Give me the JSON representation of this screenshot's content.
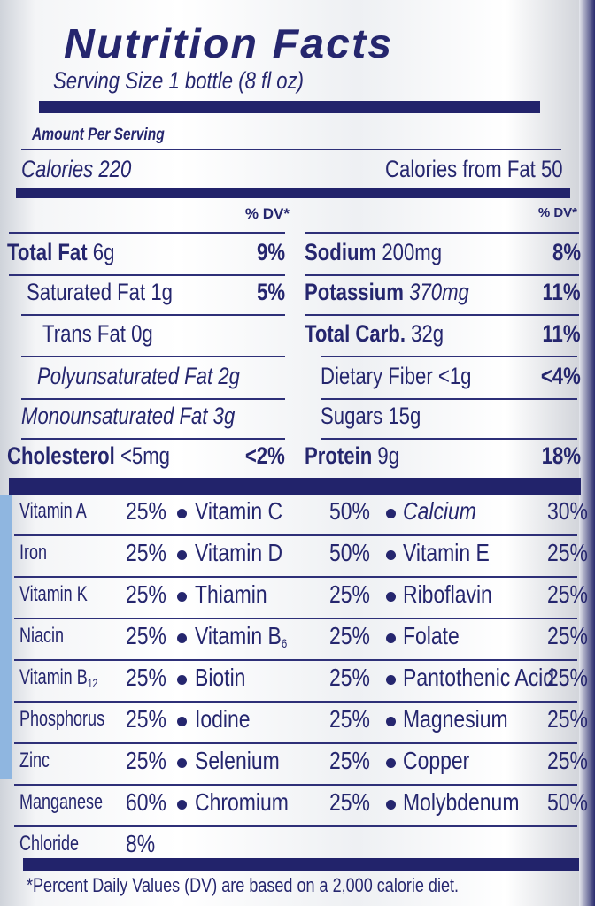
{
  "header": {
    "title": "Nutrition Facts",
    "serving_size": "Serving Size 1 bottle (8 fl oz)"
  },
  "amount_per_serving": "Amount Per Serving",
  "calories": {
    "label": "Calories 220",
    "from_fat": "Calories from Fat 50"
  },
  "dv_header": "% DV*",
  "left_rows": [
    {
      "name": "Total Fat",
      "amount": "6g",
      "dv": "9%"
    },
    {
      "name": "Saturated Fat",
      "amount": "1g",
      "dv": "5%"
    },
    {
      "name": "Trans Fat",
      "amount": "0g",
      "dv": ""
    },
    {
      "name": "Polyunsaturated Fat",
      "amount": "2g",
      "dv": ""
    },
    {
      "name": "Monounsaturated Fat",
      "amount": "3g",
      "dv": ""
    },
    {
      "name": "Cholesterol",
      "amount": "<5mg",
      "dv": "<2%"
    }
  ],
  "right_rows": [
    {
      "name": "Sodium",
      "amount": "200mg",
      "dv": "8%"
    },
    {
      "name": "Potassium",
      "amount": "370mg",
      "dv": "11%"
    },
    {
      "name": "Total Carb.",
      "amount": "32g",
      "dv": "11%"
    },
    {
      "name": "Dietary Fiber",
      "amount": "<1g",
      "dv": "<4%"
    },
    {
      "name": "Sugars",
      "amount": "15g",
      "dv": ""
    },
    {
      "name": "Protein",
      "amount": "9g",
      "dv": "18%"
    }
  ],
  "vitamins": [
    [
      {
        "n": "Vitamin A",
        "p": "25%"
      },
      {
        "n": "Vitamin C",
        "p": "50%"
      },
      {
        "n": "Calcium",
        "p": "30%"
      }
    ],
    [
      {
        "n": "Iron",
        "p": "25%"
      },
      {
        "n": "Vitamin D",
        "p": "50%"
      },
      {
        "n": "Vitamin E",
        "p": "25%"
      }
    ],
    [
      {
        "n": "Vitamin K",
        "p": "25%"
      },
      {
        "n": "Thiamin",
        "p": "25%"
      },
      {
        "n": "Riboflavin",
        "p": "25%"
      }
    ],
    [
      {
        "n": "Niacin",
        "p": "25%"
      },
      {
        "n": "Vitamin B",
        "sub": "6",
        "p": "25%"
      },
      {
        "n": "Folate",
        "p": "25%"
      }
    ],
    [
      {
        "n": "Vitamin B",
        "sub": "12",
        "p": "25%"
      },
      {
        "n": "Biotin",
        "p": "25%"
      },
      {
        "n": "Pantothenic Acid",
        "p": "25%"
      }
    ],
    [
      {
        "n": "Phosphorus",
        "p": "25%"
      },
      {
        "n": "Iodine",
        "p": "25%"
      },
      {
        "n": "Magnesium",
        "p": "25%"
      }
    ],
    [
      {
        "n": "Zinc",
        "p": "25%"
      },
      {
        "n": "Selenium",
        "p": "25%"
      },
      {
        "n": "Copper",
        "p": "25%"
      }
    ],
    [
      {
        "n": "Manganese",
        "p": "60%"
      },
      {
        "n": "Chromium",
        "p": "25%"
      },
      {
        "n": "Molybdenum",
        "p": "50%"
      }
    ],
    [
      {
        "n": "Chloride",
        "p": "8%"
      }
    ]
  ],
  "footnote": "*Percent Daily Values (DV) are based on a 2,000 calorie diet.",
  "colors": {
    "ink": "#25266e",
    "bar": "#22236b"
  }
}
